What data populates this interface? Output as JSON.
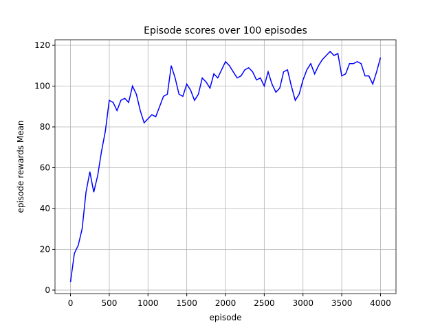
{
  "chart_data": {
    "type": "line",
    "title": "Episode scores over 100 episodes",
    "x_label": "episode",
    "y_label": "episode rewards Mean",
    "x": [
      0,
      50,
      100,
      150,
      200,
      250,
      300,
      350,
      400,
      450,
      500,
      550,
      600,
      650,
      700,
      750,
      800,
      850,
      900,
      950,
      1000,
      1050,
      1100,
      1150,
      1200,
      1250,
      1300,
      1350,
      1400,
      1450,
      1500,
      1550,
      1600,
      1650,
      1700,
      1750,
      1800,
      1850,
      1900,
      1950,
      2000,
      2050,
      2100,
      2150,
      2200,
      2250,
      2300,
      2350,
      2400,
      2450,
      2500,
      2550,
      2600,
      2650,
      2700,
      2750,
      2800,
      2850,
      2900,
      2950,
      3000,
      3050,
      3100,
      3150,
      3200,
      3250,
      3300,
      3350,
      3400,
      3450,
      3500,
      3550,
      3600,
      3650,
      3700,
      3750,
      3800,
      3850,
      3900,
      3950,
      4000
    ],
    "series": [
      {
        "name": "episode rewards Mean",
        "color": "#0000ff",
        "values": [
          4,
          18,
          22,
          30,
          48,
          58,
          48,
          56,
          68,
          78,
          93,
          92,
          88,
          93,
          94,
          92,
          100,
          96,
          88,
          82,
          84,
          86,
          85,
          90,
          95,
          96,
          110,
          104,
          96,
          95,
          101,
          98,
          93,
          96,
          104,
          102,
          99,
          106,
          104,
          108,
          112,
          110,
          107,
          104,
          105,
          108,
          109,
          107,
          103,
          104,
          100,
          107,
          101,
          97,
          99,
          107,
          108,
          100,
          93,
          96,
          103,
          108,
          111,
          106,
          110,
          113,
          115,
          117,
          115,
          116,
          105,
          106,
          111,
          111,
          112,
          111,
          105,
          105,
          101,
          107,
          114
        ]
      }
    ],
    "xlim": [
      -200,
      4200
    ],
    "ylim": [
      -1.7,
      122.7
    ],
    "xticks": [
      0,
      500,
      1000,
      1500,
      2000,
      2500,
      3000,
      3500,
      4000
    ],
    "yticks": [
      0,
      20,
      40,
      60,
      80,
      100,
      120
    ],
    "grid": true
  }
}
